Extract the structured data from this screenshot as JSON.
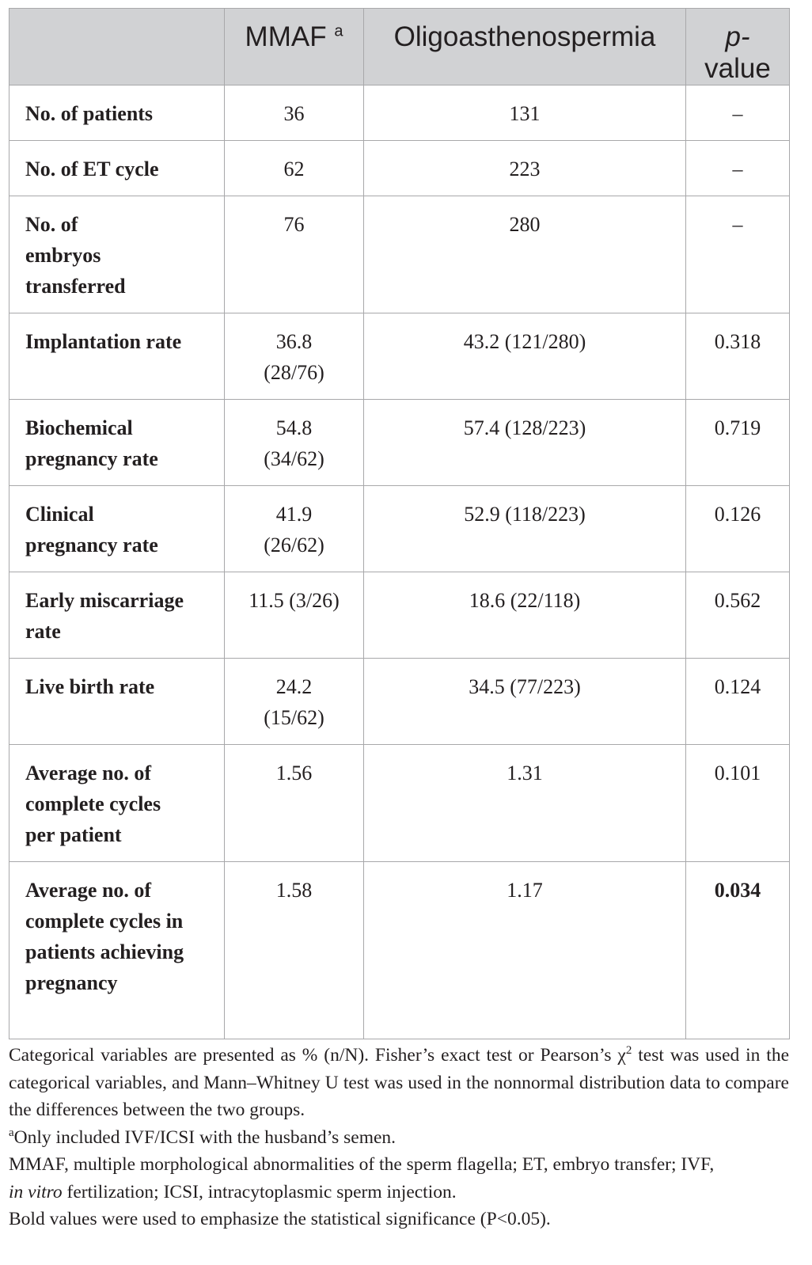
{
  "table": {
    "headers": [
      "",
      "MMAF",
      "Oligoasthenospermia",
      "p-value"
    ],
    "header_mmaf_marker": "a",
    "header_pvalue_italic": "p-",
    "header_pvalue_rest": "value",
    "rows": [
      {
        "label": "No. of patients",
        "mmaf": "36",
        "oligo": "131",
        "p": "–"
      },
      {
        "label": "No. of ET cycle",
        "mmaf": "62",
        "oligo": "223",
        "p": "–"
      },
      {
        "label": "No. of embryos transferred",
        "mmaf": "76",
        "oligo": "280",
        "p": "–"
      },
      {
        "label": "Implantation rate",
        "mmaf": "36.8 (28/76)",
        "oligo": "43.2 (121/280)",
        "p": "0.318"
      },
      {
        "label": "Biochemical pregnancy rate",
        "mmaf": "54.8 (34/62)",
        "oligo": "57.4 (128/223)",
        "p": "0.719"
      },
      {
        "label": "Clinical pregnancy rate",
        "mmaf": "41.9 (26/62)",
        "oligo": "52.9 (118/223)",
        "p": "0.126"
      },
      {
        "label": "Early miscarriage rate",
        "mmaf": "11.5 (3/26)",
        "oligo": "18.6 (22/118)",
        "p": "0.562"
      },
      {
        "label": "Live birth rate",
        "mmaf": "24.2 (15/62)",
        "oligo": "34.5 (77/223)",
        "p": "0.124"
      },
      {
        "label": "Average no. of complete cycles per patient",
        "mmaf": "1.56",
        "oligo": "1.31",
        "p": "0.101"
      },
      {
        "label": "Average no. of complete cycles in patients achieving pregnancy",
        "mmaf": "1.58",
        "oligo": "1.17",
        "p": "0.034",
        "p_bold": true
      }
    ]
  },
  "notes": {
    "note1_a": "Categorical variables are presented as % (n/N). Fisher’s exact test or Pearson’s χ",
    "note1_sup": "2",
    "note1_b": " test was used in the categorical variables, and Mann–Whitney U test was used in the nonnormal distribution data to compare the differences between the two groups.",
    "note2_sup": "a",
    "note2": "Only included IVF/ICSI with the husband’s semen.",
    "note3_a": "MMAF, multiple morphological abnormalities of the sperm flagella; ET, embryo transfer; IVF,",
    "note3_italic": "in vitro",
    "note3_b": " fertilization; ICSI, intracytoplasmic sperm injection.",
    "note4": "Bold values were used to emphasize the statistical significance (P<0.05)."
  }
}
